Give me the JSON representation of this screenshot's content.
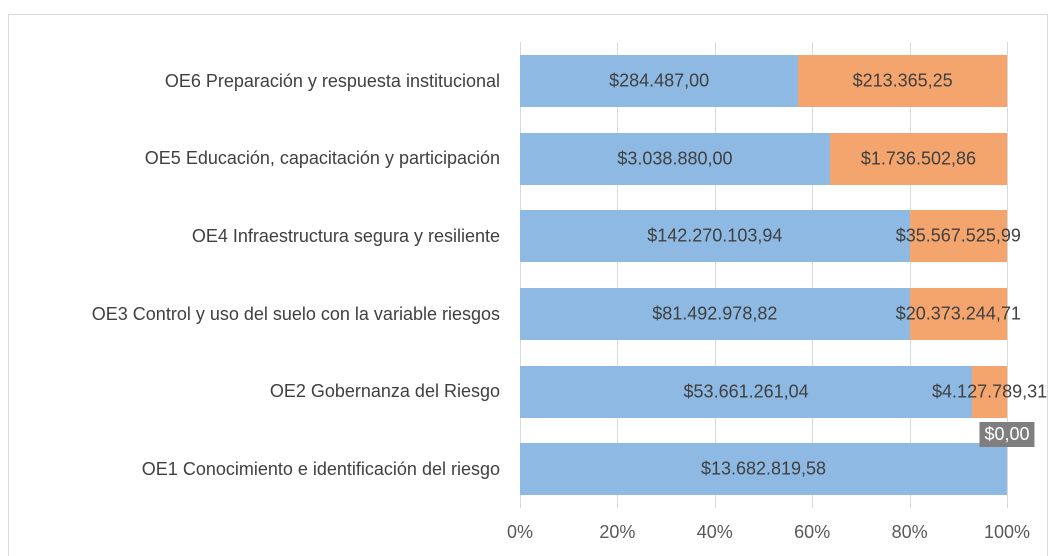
{
  "chart_data": {
    "type": "bar",
    "orientation": "horizontal",
    "stacking": "percent",
    "categories": [
      "OE6 Preparación y respuesta institucional",
      "OE5 Educación, capacitación y participación",
      "OE4 Infraestructura segura y resiliente",
      "OE3 Control y uso del suelo con la variable riesgos",
      "OE2 Gobernanza del Riesgo",
      "OE1 Conocimiento e identificación del riesgo"
    ],
    "series": [
      {
        "color": "#8db9e3",
        "values": [
          284487,
          3038880,
          142270103.94,
          81492978.82,
          53661261.04,
          13682819.58
        ],
        "value_labels": [
          "$284.487,00",
          "$3.038.880,00",
          "$142.270.103,94",
          "$81.492.978,82",
          "$53.661.261,04",
          "$13.682.819,58"
        ]
      },
      {
        "color": "#f4a56e",
        "values": [
          213365.25,
          1736502.86,
          35567525.99,
          20373244.71,
          4127789.31,
          0
        ],
        "value_labels": [
          "$213.365,25",
          "$1.736.502,86",
          "$35.567.525,99",
          "$20.373.244,71",
          "$4.127.789,31",
          "$0,00"
        ]
      }
    ],
    "xlim": [
      0,
      100
    ],
    "xticks": [
      {
        "value": 0,
        "label": "0%"
      },
      {
        "value": 20,
        "label": "20%"
      },
      {
        "value": 40,
        "label": "40%"
      },
      {
        "value": 60,
        "label": "60%"
      },
      {
        "value": 80,
        "label": "80%"
      },
      {
        "value": 100,
        "label": "100%"
      }
    ],
    "grid": true
  }
}
